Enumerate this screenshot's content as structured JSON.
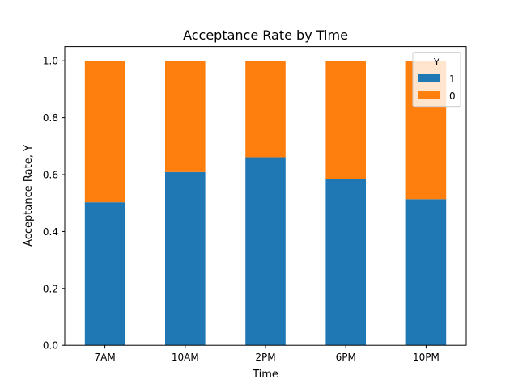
{
  "chart_data": {
    "type": "bar",
    "stacked": true,
    "title": "Acceptance Rate by Time",
    "xlabel": "Time",
    "ylabel": "Acceptance Rate, Y",
    "categories": [
      "7AM",
      "10AM",
      "2PM",
      "6PM",
      "10PM"
    ],
    "series": [
      {
        "name": "1",
        "color": "#1f77b4",
        "values": [
          0.503,
          0.609,
          0.661,
          0.584,
          0.514
        ]
      },
      {
        "name": "0",
        "color": "#ff7f0e",
        "values": [
          0.497,
          0.391,
          0.339,
          0.416,
          0.486
        ]
      }
    ],
    "ylim": [
      0,
      1.05
    ],
    "yticks": [
      0.0,
      0.2,
      0.4,
      0.6,
      0.8,
      1.0
    ],
    "ytick_labels": [
      "0.0",
      "0.2",
      "0.4",
      "0.6",
      "0.8",
      "1.0"
    ],
    "grid": false,
    "legend": {
      "title": "Y",
      "position": "top-right"
    }
  }
}
